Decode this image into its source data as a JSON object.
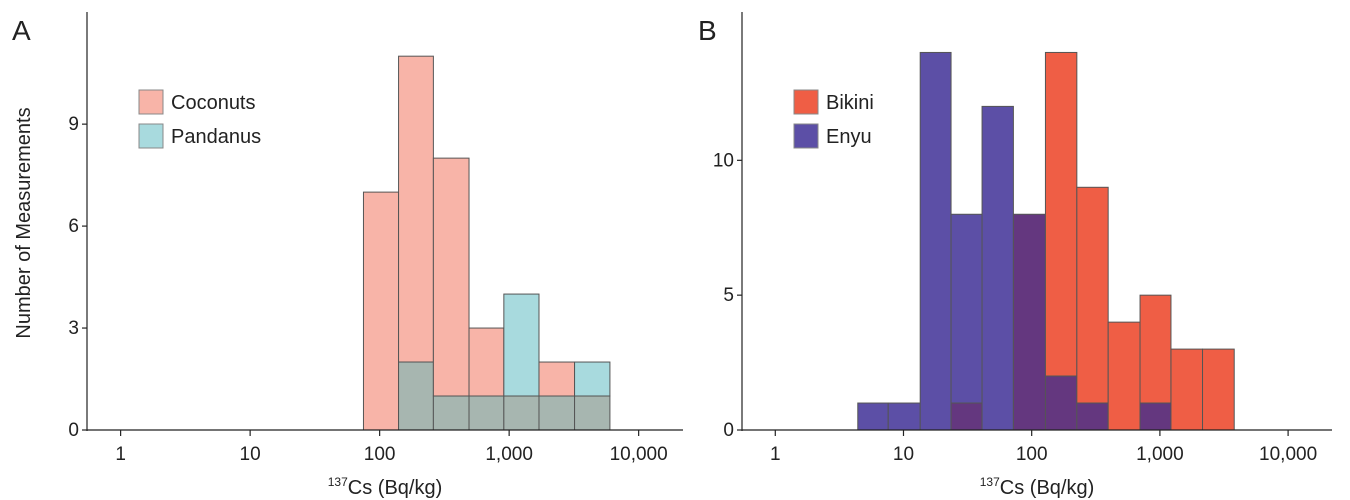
{
  "chart_data": [
    {
      "type": "bar",
      "panel_label": "A",
      "title": "",
      "ylabel": "Number of Measurements",
      "xlabel_sup": "137",
      "xlabel": "Cs (Bq/kg)",
      "x_scale": "log",
      "xlim": [
        0.55,
        22000
      ],
      "ylim": [
        0,
        12.3
      ],
      "x_ticks": [
        1,
        10,
        100,
        1000,
        10000
      ],
      "x_tick_labels": [
        "1",
        "10",
        "100",
        "1,000",
        "10,000"
      ],
      "y_ticks": [
        0,
        3,
        6,
        9
      ],
      "y_tick_labels": [
        "0",
        "3",
        "6",
        "9"
      ],
      "grid": false,
      "legend_position": "top-left",
      "bin_edges": [
        75,
        140,
        260,
        490,
        910,
        1700,
        3200,
        6000
      ],
      "series": [
        {
          "name": "Coconuts",
          "color": "#f8b4a8",
          "values": [
            7,
            11,
            8,
            3,
            1,
            2,
            1
          ]
        },
        {
          "name": "Pandanus",
          "color": "#a8dade",
          "values": [
            0,
            2,
            1,
            1,
            4,
            1,
            2
          ]
        }
      ],
      "overlap_color": "#a7b6b0"
    },
    {
      "type": "bar",
      "panel_label": "B",
      "title": "",
      "ylabel": "",
      "xlabel_sup": "137",
      "xlabel": "Cs (Bq/kg)",
      "x_scale": "log",
      "xlim": [
        0.55,
        22000
      ],
      "ylim": [
        0,
        15.5
      ],
      "x_ticks": [
        1,
        10,
        100,
        1000,
        10000
      ],
      "x_tick_labels": [
        "1",
        "10",
        "100",
        "1,000",
        "10,000"
      ],
      "y_ticks": [
        0,
        5,
        10
      ],
      "y_tick_labels": [
        "0",
        "5",
        "10"
      ],
      "grid": false,
      "legend_position": "top-left",
      "bin_edges": [
        4.4,
        7.6,
        13.5,
        23.5,
        41,
        72,
        128,
        225,
        395,
        700,
        1220,
        2150,
        3800,
        6700
      ],
      "series": [
        {
          "name": "Bikini",
          "color": "#ef5e45",
          "values": [
            0,
            0,
            0,
            1,
            0,
            8,
            14,
            9,
            4,
            5,
            3,
            3,
            0
          ]
        },
        {
          "name": "Enyu",
          "color": "#5c4fa6",
          "values": [
            1,
            1,
            14,
            8,
            12,
            8,
            2,
            1,
            0,
            1,
            0,
            0,
            0
          ]
        }
      ],
      "overlap_color": "#64377f"
    }
  ]
}
